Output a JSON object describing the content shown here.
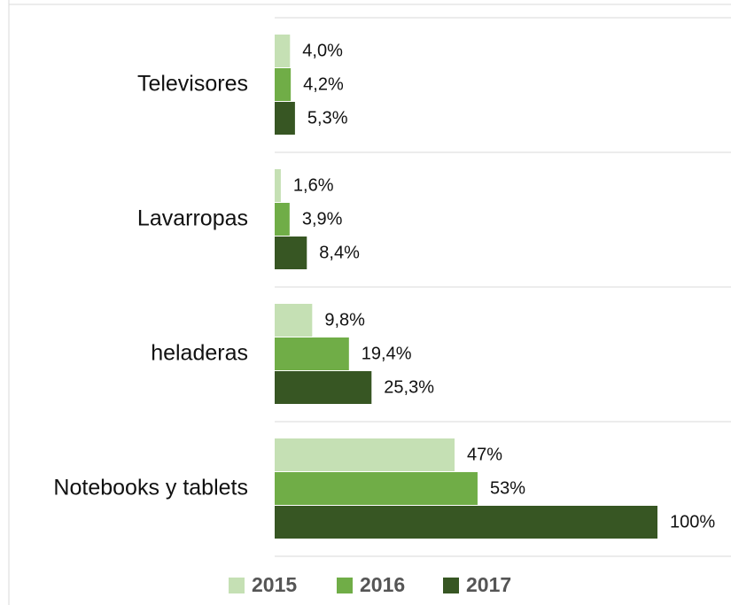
{
  "chart_data": {
    "type": "bar",
    "orientation": "horizontal",
    "categories": [
      "Televisores",
      "Lavarropas",
      "heladeras",
      "Notebooks y tablets"
    ],
    "series": [
      {
        "name": "2015",
        "color": "#c5e0b4",
        "values": [
          4.0,
          1.6,
          9.8,
          47
        ],
        "value_labels": [
          "4,0%",
          "1,6%",
          "9,8%",
          "47%"
        ]
      },
      {
        "name": "2016",
        "color": "#70ad47",
        "values": [
          4.2,
          3.9,
          19.4,
          53
        ],
        "value_labels": [
          "4,2%",
          "3,9%",
          "19,4%",
          "53%"
        ]
      },
      {
        "name": "2017",
        "color": "#375623",
        "values": [
          5.3,
          8.4,
          25.3,
          100
        ],
        "value_labels": [
          "5,3%",
          "8,4%",
          "25,3%",
          "100%"
        ]
      }
    ],
    "xlim": [
      0,
      100
    ],
    "legend": "bottom"
  }
}
